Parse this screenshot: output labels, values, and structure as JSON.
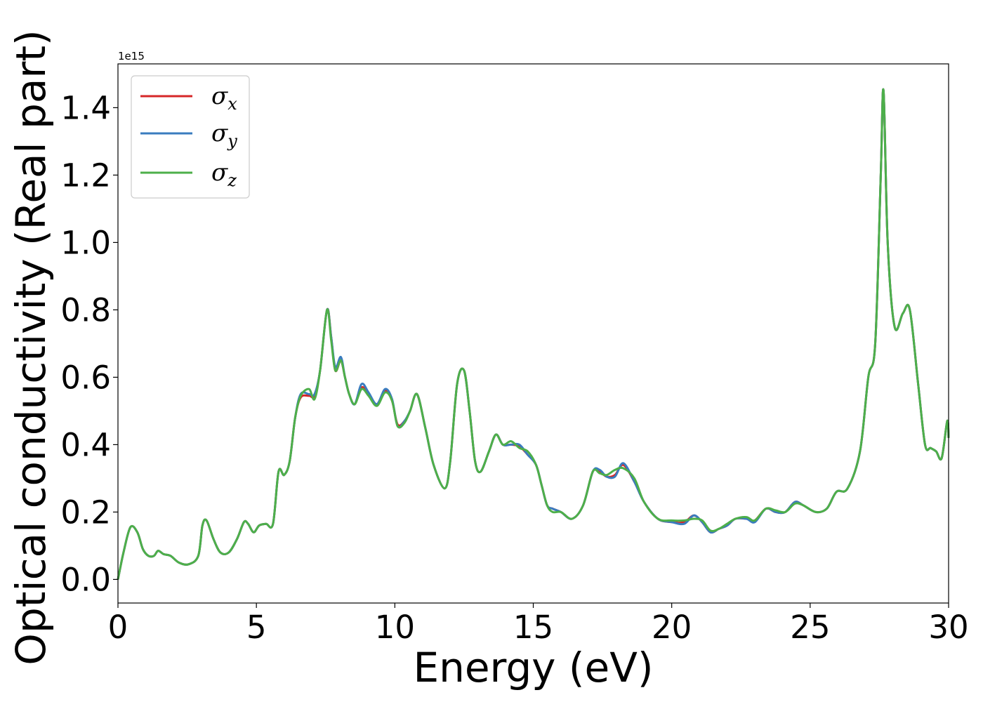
{
  "chart_data": {
    "type": "line",
    "title": "",
    "xlabel": "Energy (eV)",
    "ylabel": "Optical conductivity (Real part)",
    "y_offset_label": "1e15",
    "y_scale": 1000000000000000.0,
    "xlim": [
      0,
      30
    ],
    "ylim": [
      -0.07,
      1.53
    ],
    "xticks": [
      0,
      5,
      10,
      15,
      20,
      25,
      30
    ],
    "xtick_labels": [
      "0",
      "5",
      "10",
      "15",
      "20",
      "25",
      "30"
    ],
    "yticks": [
      0.0,
      0.2,
      0.4,
      0.6,
      0.8,
      1.0,
      1.2,
      1.4
    ],
    "ytick_labels": [
      "0.0",
      "0.2",
      "0.4",
      "0.6",
      "0.8",
      "1.0",
      "1.2",
      "1.4"
    ],
    "grid": false,
    "legend_position": "top-left",
    "series": [
      {
        "name": "σ",
        "subscript": "x",
        "color": "#d62728",
        "x": [
          0,
          0.2,
          0.45,
          0.7,
          0.9,
          1.1,
          1.3,
          1.45,
          1.65,
          1.9,
          2.2,
          2.55,
          2.9,
          3.05,
          3.2,
          3.45,
          3.7,
          4.0,
          4.3,
          4.55,
          4.7,
          4.9,
          5.1,
          5.35,
          5.6,
          5.8,
          6.0,
          6.2,
          6.4,
          6.6,
          6.9,
          7.1,
          7.3,
          7.55,
          7.7,
          7.85,
          8.05,
          8.2,
          8.35,
          8.55,
          8.8,
          9.05,
          9.35,
          9.65,
          9.9,
          10.1,
          10.35,
          10.55,
          10.8,
          11.1,
          11.4,
          11.8,
          12.0,
          12.25,
          12.5,
          12.7,
          12.9,
          13.1,
          13.4,
          13.65,
          13.9,
          14.2,
          14.5,
          14.8,
          15.1,
          15.3,
          15.5,
          15.7,
          16.0,
          16.4,
          16.8,
          17.15,
          17.4,
          17.65,
          17.95,
          18.25,
          18.65,
          19.0,
          19.5,
          20.0,
          20.45,
          20.8,
          21.1,
          21.4,
          21.7,
          22.0,
          22.3,
          22.7,
          23.0,
          23.4,
          23.75,
          24.1,
          24.45,
          24.75,
          25.2,
          25.6,
          25.95,
          26.35,
          26.8,
          27.1,
          27.35,
          27.55,
          27.65,
          27.8,
          28.05,
          28.35,
          28.6,
          28.9,
          29.15,
          29.35,
          29.55,
          29.75,
          29.95,
          30.0
        ],
        "values": [
          0,
          0.08,
          0.155,
          0.14,
          0.09,
          0.07,
          0.07,
          0.085,
          0.075,
          0.07,
          0.05,
          0.045,
          0.07,
          0.16,
          0.175,
          0.12,
          0.08,
          0.08,
          0.12,
          0.17,
          0.165,
          0.14,
          0.16,
          0.165,
          0.165,
          0.32,
          0.31,
          0.35,
          0.48,
          0.54,
          0.545,
          0.545,
          0.62,
          0.8,
          0.72,
          0.62,
          0.65,
          0.6,
          0.55,
          0.52,
          0.57,
          0.55,
          0.52,
          0.56,
          0.53,
          0.46,
          0.47,
          0.5,
          0.55,
          0.45,
          0.34,
          0.27,
          0.35,
          0.58,
          0.62,
          0.5,
          0.35,
          0.32,
          0.38,
          0.43,
          0.4,
          0.4,
          0.395,
          0.37,
          0.34,
          0.28,
          0.22,
          0.21,
          0.2,
          0.18,
          0.22,
          0.32,
          0.32,
          0.305,
          0.31,
          0.34,
          0.29,
          0.23,
          0.18,
          0.17,
          0.17,
          0.19,
          0.17,
          0.14,
          0.15,
          0.16,
          0.18,
          0.18,
          0.175,
          0.21,
          0.2,
          0.2,
          0.23,
          0.22,
          0.2,
          0.21,
          0.26,
          0.27,
          0.38,
          0.6,
          0.7,
          1.2,
          1.45,
          1.0,
          0.75,
          0.79,
          0.8,
          0.58,
          0.4,
          0.39,
          0.38,
          0.36,
          0.47,
          0.42
        ]
      },
      {
        "name": "σ",
        "subscript": "y",
        "color": "#3a7cbf",
        "x": [
          0,
          0.2,
          0.45,
          0.7,
          0.9,
          1.1,
          1.3,
          1.45,
          1.65,
          1.9,
          2.2,
          2.55,
          2.9,
          3.05,
          3.2,
          3.45,
          3.7,
          4.0,
          4.3,
          4.55,
          4.7,
          4.9,
          5.1,
          5.35,
          5.6,
          5.8,
          6.0,
          6.2,
          6.4,
          6.6,
          6.9,
          7.1,
          7.3,
          7.55,
          7.7,
          7.85,
          8.05,
          8.2,
          8.35,
          8.55,
          8.8,
          9.05,
          9.35,
          9.65,
          9.9,
          10.1,
          10.35,
          10.55,
          10.8,
          11.1,
          11.4,
          11.8,
          12.0,
          12.25,
          12.5,
          12.7,
          12.9,
          13.1,
          13.4,
          13.65,
          13.9,
          14.2,
          14.5,
          14.8,
          15.1,
          15.3,
          15.5,
          15.7,
          16.0,
          16.4,
          16.8,
          17.15,
          17.4,
          17.65,
          17.95,
          18.25,
          18.65,
          19.0,
          19.5,
          20.0,
          20.45,
          20.8,
          21.1,
          21.4,
          21.7,
          22.0,
          22.3,
          22.7,
          23.0,
          23.4,
          23.75,
          24.1,
          24.45,
          24.75,
          25.2,
          25.6,
          25.95,
          26.35,
          26.8,
          27.1,
          27.35,
          27.55,
          27.65,
          27.8,
          28.05,
          28.35,
          28.6,
          28.9,
          29.15,
          29.35,
          29.55,
          29.75,
          29.95,
          30.0
        ],
        "values": [
          0,
          0.08,
          0.155,
          0.14,
          0.09,
          0.07,
          0.07,
          0.085,
          0.075,
          0.07,
          0.05,
          0.045,
          0.07,
          0.16,
          0.175,
          0.12,
          0.08,
          0.08,
          0.12,
          0.17,
          0.165,
          0.14,
          0.16,
          0.165,
          0.165,
          0.32,
          0.31,
          0.35,
          0.48,
          0.55,
          0.55,
          0.55,
          0.62,
          0.8,
          0.72,
          0.63,
          0.66,
          0.6,
          0.55,
          0.52,
          0.58,
          0.555,
          0.52,
          0.565,
          0.535,
          0.455,
          0.47,
          0.5,
          0.55,
          0.45,
          0.34,
          0.27,
          0.35,
          0.58,
          0.62,
          0.5,
          0.35,
          0.32,
          0.38,
          0.43,
          0.4,
          0.4,
          0.4,
          0.37,
          0.34,
          0.28,
          0.22,
          0.21,
          0.2,
          0.18,
          0.22,
          0.32,
          0.325,
          0.305,
          0.305,
          0.345,
          0.29,
          0.23,
          0.18,
          0.17,
          0.165,
          0.19,
          0.17,
          0.14,
          0.15,
          0.16,
          0.18,
          0.18,
          0.17,
          0.21,
          0.2,
          0.2,
          0.23,
          0.22,
          0.2,
          0.21,
          0.26,
          0.27,
          0.38,
          0.6,
          0.7,
          1.2,
          1.45,
          1.0,
          0.75,
          0.79,
          0.8,
          0.58,
          0.4,
          0.39,
          0.38,
          0.36,
          0.47,
          0.42
        ]
      },
      {
        "name": "σ",
        "subscript": "z",
        "color": "#4daf4a",
        "x": [
          0,
          0.2,
          0.45,
          0.7,
          0.9,
          1.1,
          1.3,
          1.45,
          1.65,
          1.9,
          2.2,
          2.55,
          2.9,
          3.05,
          3.2,
          3.45,
          3.7,
          4.0,
          4.3,
          4.55,
          4.7,
          4.9,
          5.1,
          5.35,
          5.6,
          5.8,
          6.0,
          6.2,
          6.4,
          6.6,
          6.9,
          7.1,
          7.3,
          7.55,
          7.7,
          7.85,
          8.05,
          8.2,
          8.35,
          8.55,
          8.8,
          9.05,
          9.35,
          9.65,
          9.9,
          10.1,
          10.35,
          10.55,
          10.8,
          11.1,
          11.4,
          11.8,
          12.0,
          12.25,
          12.5,
          12.7,
          12.9,
          13.1,
          13.4,
          13.65,
          13.9,
          14.2,
          14.5,
          14.8,
          15.1,
          15.3,
          15.5,
          15.7,
          16.0,
          16.4,
          16.8,
          17.15,
          17.4,
          17.65,
          17.95,
          18.25,
          18.65,
          19.0,
          19.5,
          20.0,
          20.45,
          20.8,
          21.1,
          21.4,
          21.7,
          22.0,
          22.3,
          22.7,
          23.0,
          23.4,
          23.75,
          24.1,
          24.45,
          24.75,
          25.2,
          25.6,
          25.95,
          26.35,
          26.8,
          27.1,
          27.35,
          27.55,
          27.65,
          27.8,
          28.05,
          28.35,
          28.6,
          28.9,
          29.15,
          29.35,
          29.55,
          29.75,
          29.95,
          30.0
        ],
        "values": [
          0,
          0.08,
          0.155,
          0.14,
          0.09,
          0.07,
          0.07,
          0.085,
          0.075,
          0.07,
          0.05,
          0.045,
          0.07,
          0.16,
          0.175,
          0.12,
          0.08,
          0.08,
          0.12,
          0.17,
          0.165,
          0.14,
          0.16,
          0.165,
          0.165,
          0.32,
          0.31,
          0.35,
          0.48,
          0.545,
          0.565,
          0.535,
          0.62,
          0.8,
          0.71,
          0.62,
          0.65,
          0.6,
          0.55,
          0.52,
          0.565,
          0.545,
          0.515,
          0.555,
          0.53,
          0.455,
          0.465,
          0.5,
          0.55,
          0.45,
          0.34,
          0.27,
          0.35,
          0.58,
          0.62,
          0.5,
          0.35,
          0.32,
          0.38,
          0.43,
          0.4,
          0.41,
          0.39,
          0.38,
          0.34,
          0.28,
          0.22,
          0.2,
          0.2,
          0.18,
          0.22,
          0.32,
          0.315,
          0.31,
          0.325,
          0.33,
          0.3,
          0.23,
          0.18,
          0.175,
          0.175,
          0.18,
          0.175,
          0.145,
          0.15,
          0.165,
          0.18,
          0.185,
          0.175,
          0.21,
          0.205,
          0.2,
          0.225,
          0.22,
          0.2,
          0.21,
          0.26,
          0.27,
          0.38,
          0.6,
          0.7,
          1.2,
          1.45,
          1.0,
          0.75,
          0.79,
          0.8,
          0.58,
          0.4,
          0.39,
          0.38,
          0.36,
          0.47,
          0.42
        ]
      }
    ]
  }
}
